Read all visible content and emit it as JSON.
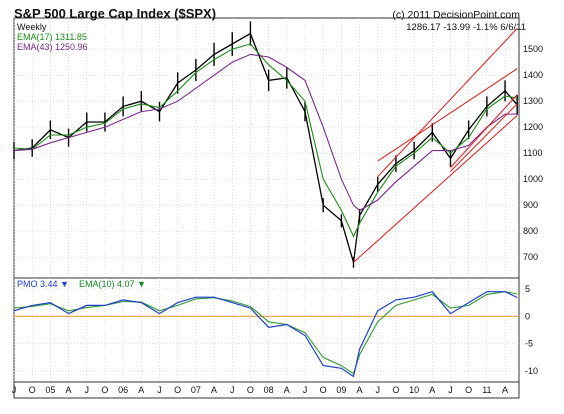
{
  "header": {
    "title": "S&P 500 Large Cap Index ($SPX)",
    "copyright": "(c) 2011 DecisionPoint.com",
    "quote": "1286.17   -13.99   -1.1%   6/6/11",
    "interval": "Weekly"
  },
  "legend": {
    "ema17": "EMA(17)  1311.85",
    "ema43": "EMA(43)  1250.96"
  },
  "pmo_legend": {
    "pmo": "PMO   3.44 ▼",
    "ema": "EMA(10)  4.07 ▼"
  },
  "colors": {
    "price": "#000000",
    "ema17": "#1a8c1a",
    "ema43": "#7a2a8c",
    "trendline": "#e01c1c",
    "pmo": "#1f3fcf",
    "pmo_signal": "#2f9a2f",
    "zero_line": "#f0a040",
    "frame": "#333333"
  },
  "chart_data": [
    {
      "type": "line",
      "title": "S&P 500 Large Cap Index ($SPX)",
      "xlabel": "",
      "ylabel": "",
      "interval": "weekly",
      "ylim": [
        620,
        1620
      ],
      "y_ticks": [
        700,
        800,
        900,
        1000,
        1100,
        1200,
        1300,
        1400,
        1500
      ],
      "x_ticks": [
        "J",
        "O",
        "05",
        "A",
        "J",
        "O",
        "06",
        "A",
        "J",
        "O",
        "07",
        "A",
        "J",
        "O",
        "08",
        "A",
        "J",
        "O",
        "09",
        "A",
        "J",
        "O",
        "10",
        "A",
        "J",
        "O",
        "11",
        "A"
      ],
      "grid": true,
      "series": [
        {
          "name": "$SPX",
          "style": "bars",
          "x": [
            "2004-07",
            "2004-10",
            "2005-01",
            "2005-04",
            "2005-07",
            "2005-10",
            "2006-01",
            "2006-04",
            "2006-07",
            "2006-10",
            "2007-01",
            "2007-04",
            "2007-07",
            "2007-10",
            "2008-01",
            "2008-04",
            "2008-07",
            "2008-10",
            "2009-01",
            "2009-03",
            "2009-04",
            "2009-07",
            "2009-10",
            "2010-01",
            "2010-04",
            "2010-07",
            "2010-10",
            "2011-01",
            "2011-04",
            "2011-06"
          ],
          "values": [
            1110,
            1120,
            1190,
            1160,
            1220,
            1220,
            1280,
            1300,
            1260,
            1370,
            1420,
            1480,
            1520,
            1560,
            1380,
            1390,
            1260,
            900,
            840,
            680,
            860,
            980,
            1060,
            1110,
            1180,
            1080,
            1190,
            1280,
            1340,
            1286
          ]
        },
        {
          "name": "EMA(17)",
          "x": [
            "2004-07",
            "2004-10",
            "2005-01",
            "2005-04",
            "2005-07",
            "2005-10",
            "2006-01",
            "2006-04",
            "2006-07",
            "2006-10",
            "2007-01",
            "2007-04",
            "2007-07",
            "2007-10",
            "2008-01",
            "2008-04",
            "2008-07",
            "2008-10",
            "2009-01",
            "2009-03",
            "2009-04",
            "2009-07",
            "2009-10",
            "2010-01",
            "2010-04",
            "2010-07",
            "2010-10",
            "2011-01",
            "2011-04",
            "2011-06"
          ],
          "values": [
            1120,
            1115,
            1170,
            1170,
            1200,
            1215,
            1270,
            1290,
            1275,
            1340,
            1410,
            1460,
            1500,
            1520,
            1440,
            1380,
            1300,
            1000,
            880,
            780,
            830,
            950,
            1050,
            1100,
            1160,
            1100,
            1160,
            1270,
            1320,
            1312
          ]
        },
        {
          "name": "EMA(43)",
          "x": [
            "2004-07",
            "2004-10",
            "2005-01",
            "2005-04",
            "2005-07",
            "2005-10",
            "2006-01",
            "2006-04",
            "2006-07",
            "2006-10",
            "2007-01",
            "2007-04",
            "2007-07",
            "2007-10",
            "2008-01",
            "2008-04",
            "2008-07",
            "2008-10",
            "2009-01",
            "2009-03",
            "2009-04",
            "2009-07",
            "2009-10",
            "2010-01",
            "2010-04",
            "2010-07",
            "2010-10",
            "2011-01",
            "2011-04",
            "2011-06"
          ],
          "values": [
            1110,
            1115,
            1140,
            1160,
            1180,
            1200,
            1230,
            1260,
            1270,
            1300,
            1350,
            1400,
            1450,
            1480,
            1470,
            1430,
            1380,
            1200,
            1000,
            900,
            880,
            920,
            990,
            1050,
            1110,
            1110,
            1130,
            1200,
            1250,
            1251
          ]
        }
      ],
      "trendlines": [
        {
          "x": [
            "2009-03",
            "2011-06"
          ],
          "values": [
            680,
            1245
          ]
        },
        {
          "x": [
            "2009-07",
            "2011-06"
          ],
          "values": [
            1010,
            1580
          ]
        },
        {
          "x": [
            "2009-07",
            "2011-06"
          ],
          "values": [
            1070,
            1425
          ]
        },
        {
          "x": [
            "2010-07",
            "2011-06"
          ],
          "values": [
            1030,
            1290
          ]
        },
        {
          "x": [
            "2010-07",
            "2011-06"
          ],
          "values": [
            1045,
            1325
          ]
        }
      ]
    },
    {
      "type": "line",
      "title": "PMO",
      "ylim": [
        -12,
        7
      ],
      "y_ticks": [
        5,
        0,
        -5,
        -10
      ],
      "zero_line": true,
      "series": [
        {
          "name": "PMO",
          "x": [
            "2004-07",
            "2004-10",
            "2005-01",
            "2005-04",
            "2005-07",
            "2005-10",
            "2006-01",
            "2006-04",
            "2006-07",
            "2006-10",
            "2007-01",
            "2007-04",
            "2007-07",
            "2007-10",
            "2008-01",
            "2008-04",
            "2008-07",
            "2008-10",
            "2009-01",
            "2009-03",
            "2009-04",
            "2009-07",
            "2009-10",
            "2010-01",
            "2010-04",
            "2010-07",
            "2010-10",
            "2011-01",
            "2011-04",
            "2011-06"
          ],
          "values": [
            1.0,
            2.0,
            2.5,
            0.5,
            2.0,
            2.0,
            3.0,
            2.5,
            0.5,
            2.5,
            3.5,
            3.5,
            2.5,
            1.5,
            -2.0,
            -1.5,
            -3.5,
            -9.0,
            -9.5,
            -11.0,
            -6.0,
            1.0,
            3.0,
            3.5,
            4.5,
            0.5,
            2.5,
            4.5,
            4.5,
            3.44
          ]
        },
        {
          "name": "EMA(10)",
          "x": [
            "2004-07",
            "2004-10",
            "2005-01",
            "2005-04",
            "2005-07",
            "2005-10",
            "2006-01",
            "2006-04",
            "2006-07",
            "2006-10",
            "2007-01",
            "2007-04",
            "2007-07",
            "2007-10",
            "2008-01",
            "2008-04",
            "2008-07",
            "2008-10",
            "2009-01",
            "2009-03",
            "2009-04",
            "2009-07",
            "2009-10",
            "2010-01",
            "2010-04",
            "2010-07",
            "2010-10",
            "2011-01",
            "2011-04",
            "2011-06"
          ],
          "values": [
            1.5,
            1.8,
            2.3,
            1.0,
            1.6,
            2.0,
            2.7,
            2.6,
            1.0,
            2.0,
            3.2,
            3.4,
            2.8,
            1.8,
            -1.0,
            -1.5,
            -3.0,
            -7.5,
            -9.0,
            -10.5,
            -7.0,
            -1.0,
            2.0,
            3.0,
            4.0,
            1.5,
            2.0,
            4.0,
            4.5,
            4.07
          ]
        }
      ]
    }
  ]
}
